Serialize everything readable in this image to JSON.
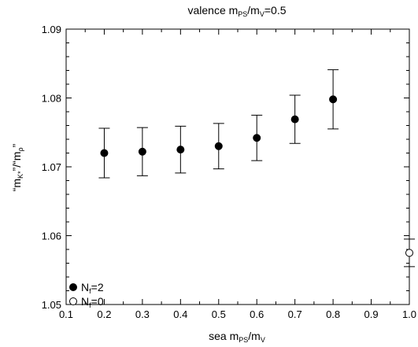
{
  "chart_data": {
    "type": "scatter",
    "title": {
      "prefix": "valence m",
      "sub1": "PS",
      "mid": "/m",
      "sub2": "V",
      "suffix": "=0.5"
    },
    "xlabel": {
      "prefix": "sea m",
      "sub1": "PS",
      "mid": "/m",
      "sub2": "V"
    },
    "ylabel": {
      "open": "“m",
      "sub1": "K*",
      "mid": "”/“m",
      "sub2": "ρ",
      "close": "”"
    },
    "xlim": [
      0.1,
      1.0
    ],
    "ylim": [
      1.05,
      1.09
    ],
    "xticks": [
      "0.1",
      "0.2",
      "0.3",
      "0.4",
      "0.5",
      "0.6",
      "0.7",
      "0.8",
      "0.9",
      "1.0"
    ],
    "yticks": [
      "1.05",
      "1.06",
      "1.07",
      "1.08",
      "1.09"
    ],
    "legend_position": "bottom-left",
    "series": [
      {
        "name": "N",
        "name_sub": "f",
        "name_suffix": "=2",
        "marker": "filled-circle",
        "x": [
          0.2,
          0.3,
          0.4,
          0.5,
          0.6,
          0.7,
          0.8
        ],
        "y": [
          1.072,
          1.0722,
          1.0725,
          1.073,
          1.0742,
          1.0769,
          1.0798
        ],
        "yerr": [
          0.0036,
          0.0035,
          0.0034,
          0.0033,
          0.0033,
          0.0035,
          0.0043
        ]
      },
      {
        "name": "N",
        "name_sub": "f",
        "name_suffix": "=0",
        "marker": "open-circle",
        "x": [
          1.0
        ],
        "y": [
          1.0575
        ],
        "yerr": [
          0.002
        ]
      }
    ]
  }
}
